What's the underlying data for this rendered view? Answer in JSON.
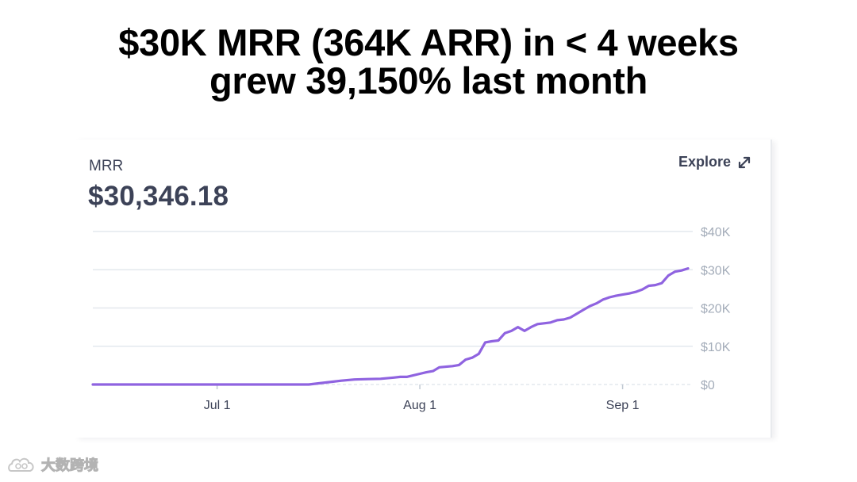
{
  "headline": {
    "line1": "$30K MRR (364K ARR) in < 4 weeks",
    "line2": "grew 39,150% last month"
  },
  "card": {
    "metric_label": "MRR",
    "metric_value": "$30,346.18",
    "explore_label": "Explore",
    "explore_icon": "expand-arrows-icon"
  },
  "watermark": {
    "icon": "cloud-logo-icon",
    "text": "大数跨境"
  },
  "colors": {
    "line": "#8f63e0",
    "gridline": "#e3e8ee",
    "tick_text": "#a3acb9",
    "text_primary": "#3c4257"
  },
  "chart_data": {
    "type": "line",
    "title": "",
    "xlabel": "",
    "ylabel": "",
    "ylim": [
      0,
      40000
    ],
    "y_ticks": [
      {
        "value": 40000,
        "label": "$40K"
      },
      {
        "value": 30000,
        "label": "$30K"
      },
      {
        "value": 20000,
        "label": "$20K"
      },
      {
        "value": 10000,
        "label": "$10K"
      },
      {
        "value": 0,
        "label": "$0"
      }
    ],
    "x_ticks": [
      {
        "date": "2020-07-01",
        "label": "Jul 1"
      },
      {
        "date": "2020-08-01",
        "label": "Aug 1"
      },
      {
        "date": "2020-09-01",
        "label": "Sep 1"
      }
    ],
    "xlim": [
      "2020-06-12",
      "2020-09-11"
    ],
    "grid": true,
    "legend": "none",
    "series": [
      {
        "x": [
          "2020-06-12",
          "2020-07-15",
          "2020-07-18",
          "2020-07-20",
          "2020-07-22",
          "2020-07-24",
          "2020-07-26",
          "2020-07-28",
          "2020-07-29",
          "2020-07-30",
          "2020-08-01",
          "2020-08-02",
          "2020-08-03",
          "2020-08-04",
          "2020-08-06",
          "2020-08-07",
          "2020-08-08",
          "2020-08-09",
          "2020-08-10",
          "2020-08-11",
          "2020-08-12",
          "2020-08-13",
          "2020-08-14",
          "2020-08-15",
          "2020-08-16",
          "2020-08-17",
          "2020-08-18",
          "2020-08-19",
          "2020-08-20",
          "2020-08-21",
          "2020-08-22",
          "2020-08-23",
          "2020-08-24",
          "2020-08-25",
          "2020-08-26",
          "2020-08-27",
          "2020-08-28",
          "2020-08-29",
          "2020-08-30",
          "2020-08-31",
          "2020-09-01",
          "2020-09-02",
          "2020-09-03",
          "2020-09-04",
          "2020-09-05",
          "2020-09-06",
          "2020-09-07",
          "2020-09-08",
          "2020-09-09",
          "2020-09-10",
          "2020-09-11"
        ],
        "y": [
          0,
          0,
          600,
          1000,
          1300,
          1400,
          1500,
          1800,
          2000,
          2000,
          2800,
          3200,
          3500,
          4500,
          4800,
          5100,
          6500,
          7000,
          8000,
          11000,
          11300,
          11500,
          13400,
          14000,
          15000,
          14000,
          15000,
          15800,
          16000,
          16200,
          16800,
          17000,
          17500,
          18500,
          19500,
          20500,
          21200,
          22200,
          22800,
          23200,
          23500,
          23800,
          24200,
          24800,
          25800,
          26000,
          26500,
          28500,
          29500,
          29800,
          30346.18
        ]
      }
    ]
  }
}
